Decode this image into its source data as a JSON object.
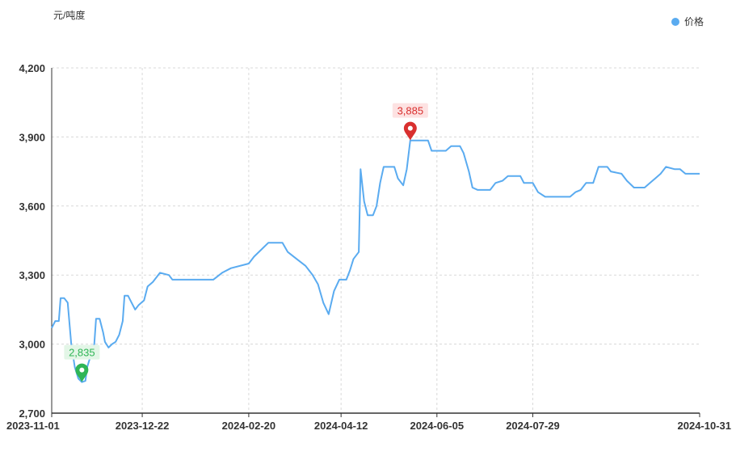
{
  "unit_label": "元/吨度",
  "legend": {
    "label": "价格",
    "color": "#5aabf0"
  },
  "colors": {
    "line": "#5aabf0",
    "max_pin": "#d9302f",
    "min_pin": "#2fb556",
    "grid": "#d8d8d8",
    "axis": "#333333"
  },
  "chart_data": {
    "type": "line",
    "title": "",
    "xlabel": "",
    "ylabel": "元/吨度",
    "ylim": [
      2700,
      4200
    ],
    "yticks": [
      2700,
      3000,
      3300,
      3600,
      3900,
      4200
    ],
    "ytick_labels": [
      "2,700",
      "3,000",
      "3,300",
      "3,600",
      "3,900",
      "4,200"
    ],
    "xlim": [
      "2023-11-01",
      "2024-10-31"
    ],
    "xticks": [
      "2023-11-01",
      "2023-12-22",
      "2024-02-20",
      "2024-04-12",
      "2024-06-05",
      "2024-07-29",
      "2024-10-31"
    ],
    "grid": true,
    "legend_position": "top-right",
    "series": [
      {
        "name": "价格",
        "points": [
          [
            "2023-11-01",
            3070
          ],
          [
            "2023-11-03",
            3100
          ],
          [
            "2023-11-05",
            3100
          ],
          [
            "2023-11-06",
            3200
          ],
          [
            "2023-11-08",
            3200
          ],
          [
            "2023-11-10",
            3180
          ],
          [
            "2023-11-12",
            3000
          ],
          [
            "2023-11-14",
            2900
          ],
          [
            "2023-11-16",
            2850
          ],
          [
            "2023-11-18",
            2835
          ],
          [
            "2023-11-20",
            2840
          ],
          [
            "2023-11-21",
            2900
          ],
          [
            "2023-11-23",
            2950
          ],
          [
            "2023-11-25",
            3000
          ],
          [
            "2023-11-26",
            3110
          ],
          [
            "2023-11-28",
            3110
          ],
          [
            "2023-11-30",
            3050
          ],
          [
            "2023-12-01",
            3010
          ],
          [
            "2023-12-03",
            2985
          ],
          [
            "2023-12-05",
            3000
          ],
          [
            "2023-12-07",
            3010
          ],
          [
            "2023-12-09",
            3040
          ],
          [
            "2023-12-11",
            3100
          ],
          [
            "2023-12-12",
            3210
          ],
          [
            "2023-12-14",
            3210
          ],
          [
            "2023-12-16",
            3180
          ],
          [
            "2023-12-18",
            3150
          ],
          [
            "2023-12-20",
            3170
          ],
          [
            "2023-12-23",
            3190
          ],
          [
            "2023-12-25",
            3250
          ],
          [
            "2023-12-28",
            3270
          ],
          [
            "2024-01-01",
            3310
          ],
          [
            "2024-01-06",
            3300
          ],
          [
            "2024-01-08",
            3280
          ],
          [
            "2024-01-20",
            3280
          ],
          [
            "2024-01-31",
            3280
          ],
          [
            "2024-02-05",
            3310
          ],
          [
            "2024-02-10",
            3330
          ],
          [
            "2024-02-20",
            3350
          ],
          [
            "2024-02-23",
            3380
          ],
          [
            "2024-02-27",
            3410
          ],
          [
            "2024-03-02",
            3440
          ],
          [
            "2024-03-10",
            3440
          ],
          [
            "2024-03-13",
            3400
          ],
          [
            "2024-03-18",
            3370
          ],
          [
            "2024-03-23",
            3340
          ],
          [
            "2024-03-27",
            3300
          ],
          [
            "2024-03-30",
            3260
          ],
          [
            "2024-04-02",
            3180
          ],
          [
            "2024-04-05",
            3130
          ],
          [
            "2024-04-08",
            3230
          ],
          [
            "2024-04-11",
            3280
          ],
          [
            "2024-04-15",
            3280
          ],
          [
            "2024-04-17",
            3320
          ],
          [
            "2024-04-19",
            3370
          ],
          [
            "2024-04-22",
            3400
          ],
          [
            "2024-04-23",
            3760
          ],
          [
            "2024-04-25",
            3620
          ],
          [
            "2024-04-27",
            3560
          ],
          [
            "2024-04-30",
            3560
          ],
          [
            "2024-05-02",
            3600
          ],
          [
            "2024-05-04",
            3700
          ],
          [
            "2024-05-06",
            3770
          ],
          [
            "2024-05-12",
            3770
          ],
          [
            "2024-05-14",
            3720
          ],
          [
            "2024-05-17",
            3690
          ],
          [
            "2024-05-19",
            3760
          ],
          [
            "2024-05-21",
            3885
          ],
          [
            "2024-05-31",
            3885
          ],
          [
            "2024-06-02",
            3840
          ],
          [
            "2024-06-10",
            3840
          ],
          [
            "2024-06-13",
            3860
          ],
          [
            "2024-06-18",
            3860
          ],
          [
            "2024-06-20",
            3830
          ],
          [
            "2024-06-23",
            3750
          ],
          [
            "2024-06-25",
            3680
          ],
          [
            "2024-06-28",
            3670
          ],
          [
            "2024-07-05",
            3670
          ],
          [
            "2024-07-08",
            3700
          ],
          [
            "2024-07-12",
            3710
          ],
          [
            "2024-07-15",
            3730
          ],
          [
            "2024-07-22",
            3730
          ],
          [
            "2024-07-24",
            3700
          ],
          [
            "2024-07-29",
            3700
          ],
          [
            "2024-08-01",
            3660
          ],
          [
            "2024-08-05",
            3640
          ],
          [
            "2024-08-15",
            3640
          ],
          [
            "2024-08-19",
            3640
          ],
          [
            "2024-08-22",
            3660
          ],
          [
            "2024-08-25",
            3670
          ],
          [
            "2024-08-28",
            3700
          ],
          [
            "2024-09-01",
            3700
          ],
          [
            "2024-09-04",
            3770
          ],
          [
            "2024-09-09",
            3770
          ],
          [
            "2024-09-11",
            3750
          ],
          [
            "2024-09-17",
            3740
          ],
          [
            "2024-09-20",
            3710
          ],
          [
            "2024-09-24",
            3680
          ],
          [
            "2024-09-30",
            3680
          ],
          [
            "2024-10-03",
            3700
          ],
          [
            "2024-10-06",
            3720
          ],
          [
            "2024-10-09",
            3740
          ],
          [
            "2024-10-12",
            3770
          ],
          [
            "2024-10-17",
            3760
          ],
          [
            "2024-10-20",
            3760
          ],
          [
            "2024-10-23",
            3740
          ],
          [
            "2024-10-31",
            3740
          ]
        ]
      }
    ],
    "annotations": [
      {
        "type": "max",
        "x": "2024-05-21",
        "value": 3885,
        "label": "3,885"
      },
      {
        "type": "min",
        "x": "2023-11-18",
        "value": 2835,
        "label": "2,835"
      }
    ]
  }
}
